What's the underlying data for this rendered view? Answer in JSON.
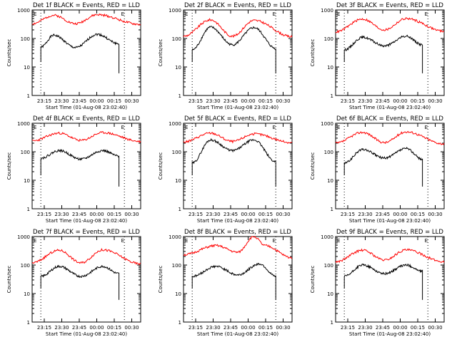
{
  "chart_data": [
    {
      "type": "line",
      "det": "Det 1f",
      "title": "Det 1f BLACK = Events, RED = LLD",
      "ylabel": "Counts/sec",
      "xlabel": "Start Time (01-Aug-08 23:02:40)",
      "xticks": [
        "23:15",
        "23:30",
        "23:45",
        "00:00",
        "00:15",
        "00:30"
      ],
      "yticks": [
        "1",
        "10",
        "100",
        "1000"
      ],
      "ylim": [
        1,
        1000
      ],
      "series": [
        {
          "name": "Events",
          "color": "#000000",
          "pts": [
            [
              0.08,
              50
            ],
            [
              0.2,
              130
            ],
            [
              0.4,
              48
            ],
            [
              0.6,
              140
            ],
            [
              0.8,
              65
            ]
          ]
        },
        {
          "name": "LLD",
          "color": "#ff0000",
          "pts": [
            [
              0,
              330
            ],
            [
              0.2,
              650
            ],
            [
              0.4,
              330
            ],
            [
              0.6,
              680
            ],
            [
              1,
              310
            ]
          ]
        }
      ]
    },
    {
      "type": "line",
      "det": "Det 2f",
      "title": "Det 2f BLACK = Events, RED = LLD",
      "ylabel": "Counts/sec",
      "xlabel": "Start Time (01-Aug-08 23:02:40)",
      "xticks": [
        "23:15",
        "23:30",
        "23:45",
        "00:00",
        "00:15",
        "00:30"
      ],
      "yticks": [
        "1",
        "10",
        "100",
        "1000"
      ],
      "ylim": [
        1,
        1000
      ],
      "series": [
        {
          "name": "Events",
          "color": "#000000",
          "pts": [
            [
              0.08,
              40
            ],
            [
              0.25,
              250
            ],
            [
              0.45,
              60
            ],
            [
              0.65,
              240
            ],
            [
              0.85,
              45
            ]
          ]
        },
        {
          "name": "LLD",
          "color": "#ff0000",
          "pts": [
            [
              0,
              120
            ],
            [
              0.25,
              450
            ],
            [
              0.45,
              120
            ],
            [
              0.65,
              430
            ],
            [
              1,
              115
            ]
          ]
        }
      ]
    },
    {
      "type": "line",
      "det": "Det 3f",
      "title": "Det 3f BLACK = Events, RED = LLD",
      "ylabel": "Counts/sec",
      "xlabel": "Start Time (01-Aug-08 23:02:40)",
      "xticks": [
        "23:15",
        "23:30",
        "23:45",
        "00:00",
        "00:15",
        "00:30"
      ],
      "yticks": [
        "1",
        "10",
        "100",
        "1000"
      ],
      "ylim": [
        1,
        1000
      ],
      "series": [
        {
          "name": "Events",
          "color": "#000000",
          "pts": [
            [
              0.08,
              40
            ],
            [
              0.25,
              110
            ],
            [
              0.45,
              55
            ],
            [
              0.65,
              120
            ],
            [
              0.8,
              60
            ]
          ]
        },
        {
          "name": "LLD",
          "color": "#ff0000",
          "pts": [
            [
              0,
              170
            ],
            [
              0.25,
              480
            ],
            [
              0.45,
              200
            ],
            [
              0.65,
              500
            ],
            [
              1,
              180
            ]
          ]
        }
      ]
    },
    {
      "type": "line",
      "det": "Det 4f",
      "title": "Det 4f BLACK = Events, RED = LLD",
      "ylabel": "Counts/sec",
      "xlabel": "Start Time (01-Aug-08 23:02:40)",
      "xticks": [
        "23:15",
        "23:30",
        "23:45",
        "00:00",
        "00:15",
        "00:30"
      ],
      "yticks": [
        "1",
        "10",
        "100",
        "1000"
      ],
      "ylim": [
        1,
        1000
      ],
      "series": [
        {
          "name": "Events",
          "color": "#000000",
          "pts": [
            [
              0.08,
              60
            ],
            [
              0.25,
              110
            ],
            [
              0.45,
              55
            ],
            [
              0.65,
              110
            ],
            [
              0.8,
              70
            ]
          ]
        },
        {
          "name": "LLD",
          "color": "#ff0000",
          "pts": [
            [
              0,
              240
            ],
            [
              0.25,
              450
            ],
            [
              0.45,
              250
            ],
            [
              0.65,
              470
            ],
            [
              1,
              230
            ]
          ]
        }
      ]
    },
    {
      "type": "line",
      "det": "Det 5f",
      "title": "Det 5f BLACK = Events, RED = LLD",
      "ylabel": "Counts/sec",
      "xlabel": "Start Time (01-Aug-08 23:02:40)",
      "xticks": [
        "23:15",
        "23:30",
        "23:45",
        "00:00",
        "00:15",
        "00:30"
      ],
      "yticks": [
        "1",
        "10",
        "100",
        "1000"
      ],
      "ylim": [
        1,
        1000
      ],
      "series": [
        {
          "name": "Events",
          "color": "#000000",
          "pts": [
            [
              0.08,
              40
            ],
            [
              0.25,
              260
            ],
            [
              0.45,
              110
            ],
            [
              0.65,
              260
            ],
            [
              0.85,
              45
            ]
          ]
        },
        {
          "name": "LLD",
          "color": "#ff0000",
          "pts": [
            [
              0,
              220
            ],
            [
              0.25,
              450
            ],
            [
              0.45,
              230
            ],
            [
              0.65,
              420
            ],
            [
              1,
              210
            ]
          ]
        }
      ]
    },
    {
      "type": "line",
      "det": "Det 6f",
      "title": "Det 6f BLACK = Events, RED = LLD",
      "ylabel": "Counts/sec",
      "xlabel": "Start Time (01-Aug-08 23:02:40)",
      "xticks": [
        "23:15",
        "23:30",
        "23:45",
        "00:00",
        "00:15",
        "00:30"
      ],
      "yticks": [
        "1",
        "10",
        "100",
        "1000"
      ],
      "ylim": [
        1,
        1000
      ],
      "series": [
        {
          "name": "Events",
          "color": "#000000",
          "pts": [
            [
              0.08,
              40
            ],
            [
              0.25,
              120
            ],
            [
              0.45,
              60
            ],
            [
              0.65,
              130
            ],
            [
              0.8,
              55
            ]
          ]
        },
        {
          "name": "LLD",
          "color": "#ff0000",
          "pts": [
            [
              0,
              200
            ],
            [
              0.25,
              480
            ],
            [
              0.45,
              210
            ],
            [
              0.65,
              500
            ],
            [
              1,
              190
            ]
          ]
        }
      ]
    },
    {
      "type": "line",
      "det": "Det 7f",
      "title": "Det 7f BLACK = Events, RED = LLD",
      "ylabel": "Counts/sec",
      "xlabel": "Start Time (01-Aug-08 23:02:40)",
      "xticks": [
        "23:15",
        "23:30",
        "23:45",
        "00:00",
        "00:15",
        "00:30"
      ],
      "yticks": [
        "1",
        "10",
        "100",
        "1000"
      ],
      "ylim": [
        1,
        1000
      ],
      "series": [
        {
          "name": "Events",
          "color": "#000000",
          "pts": [
            [
              0.08,
              40
            ],
            [
              0.25,
              90
            ],
            [
              0.45,
              40
            ],
            [
              0.65,
              90
            ],
            [
              0.8,
              50
            ]
          ]
        },
        {
          "name": "LLD",
          "color": "#ff0000",
          "pts": [
            [
              0,
              120
            ],
            [
              0.25,
              330
            ],
            [
              0.45,
              120
            ],
            [
              0.65,
              340
            ],
            [
              1,
              110
            ]
          ]
        }
      ]
    },
    {
      "type": "line",
      "det": "Det 8f",
      "title": "Det 8f BLACK = Events, RED = LLD",
      "ylabel": "Counts/sec",
      "xlabel": "Start Time (01-Aug-08 23:02:40)",
      "xticks": [
        "23:15",
        "23:30",
        "23:45",
        "00:00",
        "00:15",
        "00:30"
      ],
      "yticks": [
        "1",
        "10",
        "100",
        "1000"
      ],
      "ylim": [
        1,
        1000
      ],
      "series": [
        {
          "name": "Events",
          "color": "#000000",
          "pts": [
            [
              0.08,
              40
            ],
            [
              0.3,
              90
            ],
            [
              0.5,
              45
            ],
            [
              0.7,
              110
            ],
            [
              0.85,
              40
            ]
          ]
        },
        {
          "name": "LLD",
          "color": "#ff0000",
          "pts": [
            [
              0,
              230
            ],
            [
              0.3,
              480
            ],
            [
              0.5,
              280
            ],
            [
              0.65,
              1000
            ],
            [
              0.75,
              480
            ],
            [
              1,
              180
            ]
          ]
        }
      ]
    },
    {
      "type": "line",
      "det": "Det 9f",
      "title": "Det 9f BLACK = Events, RED = LLD",
      "ylabel": "Counts/sec",
      "xlabel": "Start Time (01-Aug-08 23:02:40)",
      "xticks": [
        "23:15",
        "23:30",
        "23:45",
        "00:00",
        "00:15",
        "00:30"
      ],
      "yticks": [
        "1",
        "10",
        "100",
        "1000"
      ],
      "ylim": [
        1,
        1000
      ],
      "series": [
        {
          "name": "Events",
          "color": "#000000",
          "pts": [
            [
              0.08,
              40
            ],
            [
              0.25,
              100
            ],
            [
              0.45,
              50
            ],
            [
              0.65,
              100
            ],
            [
              0.8,
              60
            ]
          ]
        },
        {
          "name": "LLD",
          "color": "#ff0000",
          "pts": [
            [
              0,
              130
            ],
            [
              0.25,
              330
            ],
            [
              0.45,
              150
            ],
            [
              0.65,
              340
            ],
            [
              1,
              130
            ]
          ]
        }
      ]
    }
  ]
}
